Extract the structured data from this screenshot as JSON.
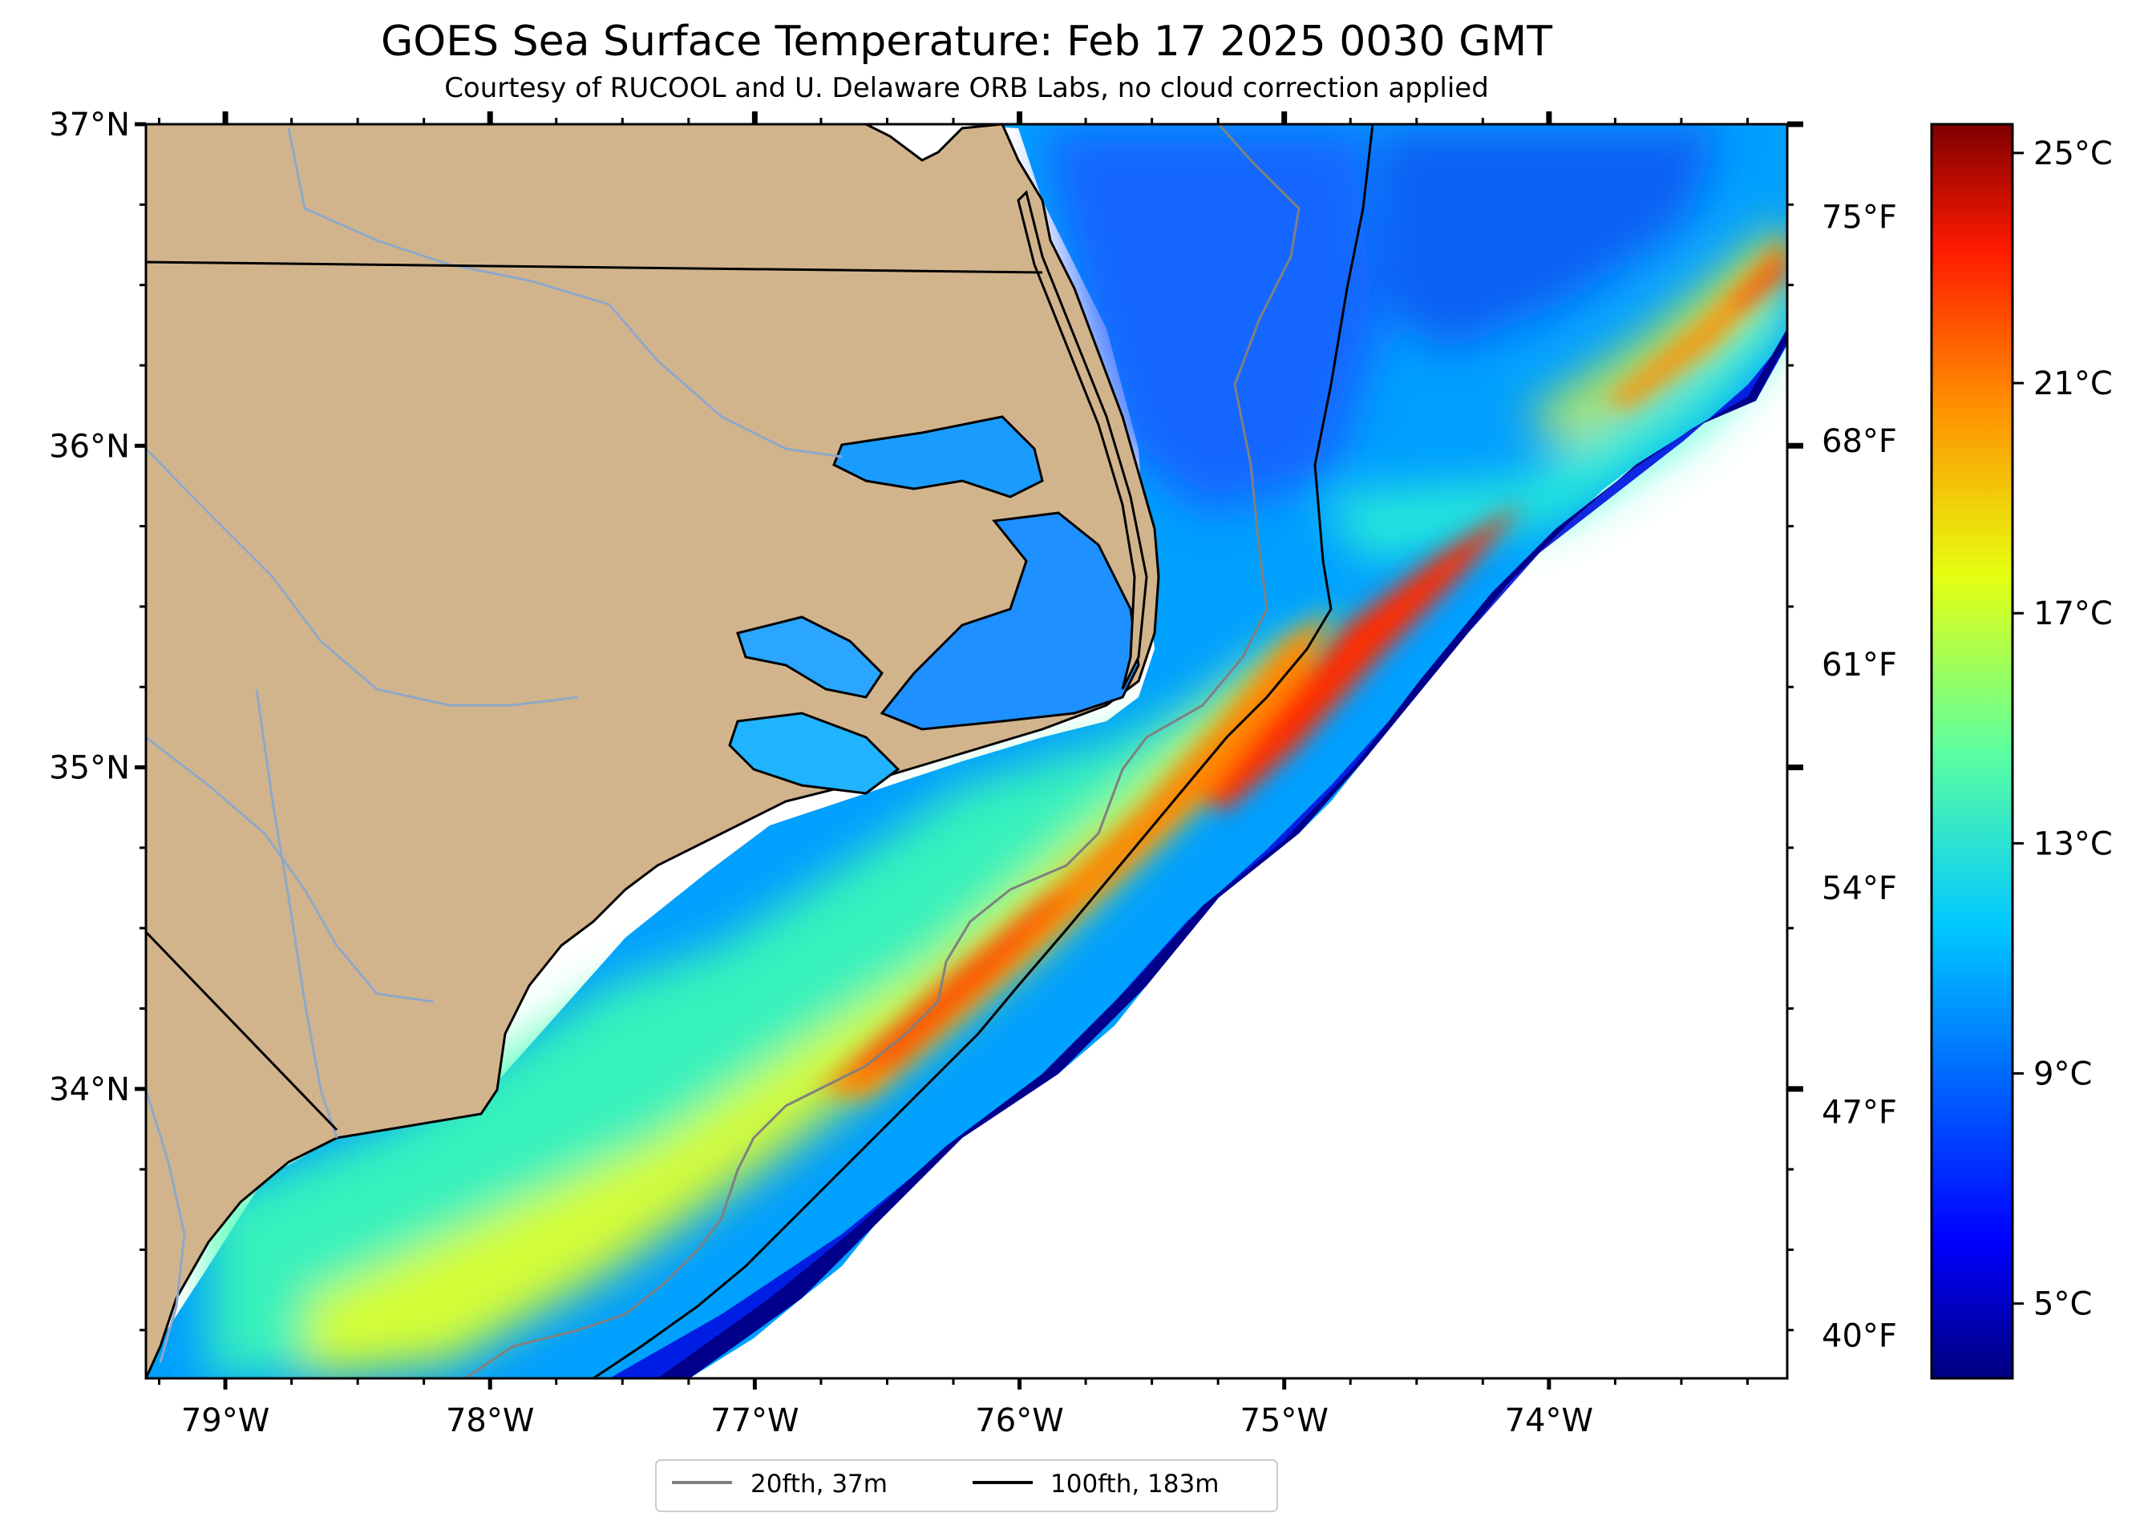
{
  "title": "GOES Sea Surface Temperature: Feb 17 2025 0030 GMT",
  "subtitle": "Courtesy of RUCOOL and U. Delaware ORB Labs, no cloud correction applied",
  "map": {
    "extent": {
      "lon": [
        -79.3,
        -73.1
      ],
      "lat": [
        33.1,
        37.0
      ]
    },
    "land_color": "#d2b48c",
    "river_color": "#8fa8c8",
    "coastline_color": "#000000",
    "no_data_color": "#ffffff",
    "lat_labels": [
      "37°N",
      "36°N",
      "35°N",
      "34°N"
    ],
    "lat_values": [
      37,
      36,
      35,
      34
    ],
    "lon_labels": [
      "79°W",
      "78°W",
      "77°W",
      "76°W",
      "75°W",
      "74°W"
    ],
    "lon_values": [
      -79,
      -78,
      -77,
      -76,
      -75,
      -74
    ]
  },
  "colorbar": {
    "colormap": "jet",
    "range_c": [
      3.7,
      25.5
    ],
    "celsius_labels": [
      "25°C",
      "21°C",
      "17°C",
      "13°C",
      "9°C",
      "5°C"
    ],
    "celsius_values": [
      25,
      21,
      17,
      13,
      9,
      5
    ],
    "fahrenheit_labels": [
      "75°F",
      "68°F",
      "61°F",
      "54°F",
      "47°F",
      "40°F"
    ],
    "fahrenheit_values": [
      75,
      68,
      61,
      54,
      47,
      40
    ]
  },
  "legend": {
    "items": [
      {
        "label": "20fth, 37m",
        "color": "#808080"
      },
      {
        "label": "100fth, 183m",
        "color": "#000000"
      }
    ]
  }
}
